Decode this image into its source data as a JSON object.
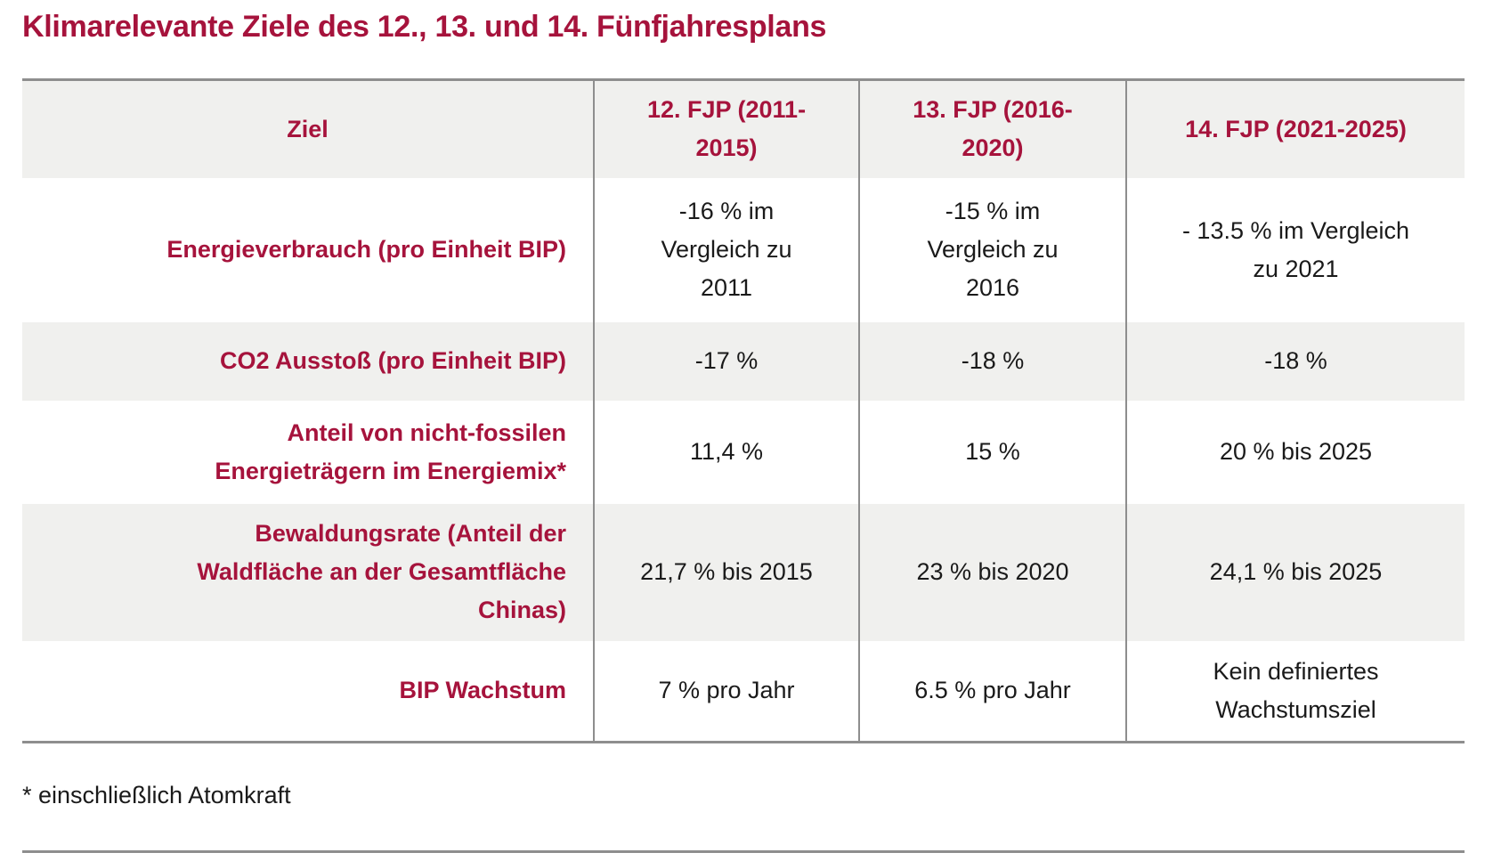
{
  "title": "Klimarelevante Ziele des 12., 13. und 14. Fünfjahresplans",
  "footnote": "* einschließlich Atomkraft",
  "colors": {
    "accent_red": "#a6133c",
    "band_gray": "#f0f0ee",
    "border_gray": "#8e8e8e",
    "text_black": "#1a1a1a"
  },
  "table": {
    "headers": [
      "Ziel",
      "12. FJP (2011-\n2015)",
      "13. FJP (2016-\n2020)",
      "14. FJP (2021-2025)"
    ],
    "rows": [
      {
        "label": "Energieverbrauch (pro Einheit BIP)",
        "values": [
          "-16 % im\nVergleich zu\n2011",
          "-15 % im\nVergleich zu\n2016",
          "- 13.5 % im Vergleich\nzu 2021"
        ]
      },
      {
        "label": "CO2 Ausstoß (pro Einheit BIP)",
        "values": [
          "-17 %",
          "-18 %",
          "-18 %"
        ]
      },
      {
        "label": "Anteil von nicht-fossilen\nEnergieträgern im Energiemix*",
        "values": [
          "11,4 %",
          "15 %",
          "20 % bis 2025"
        ]
      },
      {
        "label": "Bewaldungsrate (Anteil der\nWaldfläche an der Gesamtfläche\nChinas)",
        "values": [
          "21,7 % bis 2015",
          "23 % bis 2020",
          "24,1 % bis 2025"
        ]
      },
      {
        "label": "BIP Wachstum",
        "values": [
          "7 % pro Jahr",
          "6.5 % pro Jahr",
          "Kein definiertes\nWachstumsziel"
        ]
      }
    ]
  },
  "chart_data": {
    "type": "table",
    "title": "Klimarelevante Ziele des 12., 13. und 14. Fünfjahresplans",
    "columns": [
      "Ziel",
      "12. FJP (2011-2015)",
      "13. FJP (2016-2020)",
      "14. FJP (2021-2025)"
    ],
    "rows": [
      [
        "Energieverbrauch (pro Einheit BIP)",
        "-16 % im Vergleich zu 2011",
        "-15 % im Vergleich zu 2016",
        "- 13.5 % im Vergleich zu 2021"
      ],
      [
        "CO2 Ausstoß (pro Einheit BIP)",
        "-17 %",
        "-18 %",
        "-18 %"
      ],
      [
        "Anteil von nicht-fossilen Energieträgern im Energiemix*",
        "11,4 %",
        "15 %",
        "20 % bis 2025"
      ],
      [
        "Bewaldungsrate (Anteil der Waldfläche an der Gesamtfläche Chinas)",
        "21,7 % bis 2015",
        "23 % bis 2020",
        "24,1 % bis 2025"
      ],
      [
        "BIP Wachstum",
        "7 % pro Jahr",
        "6.5 % pro Jahr",
        "Kein definiertes Wachstumsziel"
      ]
    ],
    "footnote": "* einschließlich Atomkraft",
    "layout": {
      "banded_rows": true,
      "header_background": "#f0f0ee",
      "accent_color": "#a6133c"
    }
  }
}
